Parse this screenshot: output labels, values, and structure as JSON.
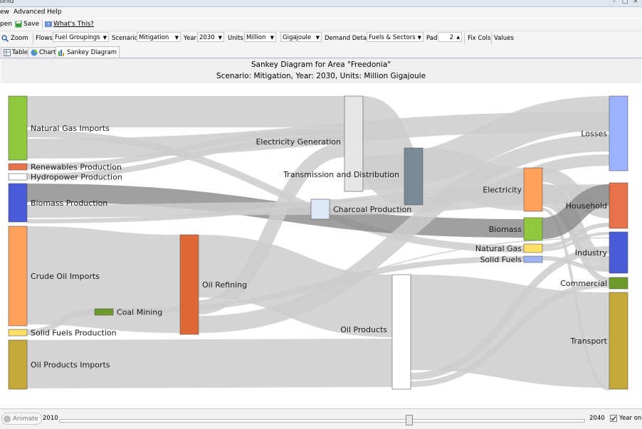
{
  "window": {
    "title_fragment": "onld"
  },
  "menu": {
    "items": [
      "ew",
      "Advanced",
      "Help"
    ]
  },
  "toolbar": {
    "open_label": "pen",
    "save_label": "Save",
    "whats_this_label": "What's This?"
  },
  "controls": {
    "zoom_label": "Zoom",
    "flows_label": "Flows:",
    "flows_value": "Fuel Groupings",
    "scenario_label": "Scenario:",
    "scenario_value": "Mitigation",
    "year_label": "Year:",
    "year_value": "2030",
    "units_label": "Units:",
    "units_value": "Million",
    "unit_value": "Gigajoule",
    "demand_label": "Demand Detail:",
    "demand_value": "Fuels & Sectors",
    "pad_label": "Pad:",
    "pad_value": "2",
    "fixcols_label": "Fix Cols",
    "values_label": "Values"
  },
  "tabs": [
    {
      "label": "Table"
    },
    {
      "label": "Chart"
    },
    {
      "label": "Sankey Diagram",
      "active": true
    }
  ],
  "diagram": {
    "title": "Sankey Diagram for Area \"Freedonia\"",
    "subtitle": "Scenario: Mitigation, Year: 2030, Units: Million Gigajoule",
    "colors": {
      "flow": "#cccccc",
      "flow_dark": "#888888"
    },
    "nodes": [
      {
        "id": "ngi",
        "label": "Natural Gas Imports",
        "color": "#92c83e"
      },
      {
        "id": "ren",
        "label": "Renewables Production",
        "color": "#e8734a"
      },
      {
        "id": "hyd",
        "label": "Hydropower Production",
        "color": "#ffffff"
      },
      {
        "id": "bio",
        "label": "Biomass Production",
        "color": "#4a5bd8"
      },
      {
        "id": "coi",
        "label": "Crude Oil Imports",
        "color": "#ff9f5a"
      },
      {
        "id": "sfp",
        "label": "Solid Fuels Production",
        "color": "#ffe066"
      },
      {
        "id": "opi",
        "label": "Oil Products Imports",
        "color": "#c4a83a"
      },
      {
        "id": "coal",
        "label": "Coal Mining",
        "color": "#6e9a2c"
      },
      {
        "id": "ref",
        "label": "Oil Refining",
        "color": "#de6836"
      },
      {
        "id": "egen",
        "label": "Electricity Generation",
        "color": "#e6e6e6"
      },
      {
        "id": "char",
        "label": "Charcoal Production",
        "color": "#dde8f8"
      },
      {
        "id": "td",
        "label": "Transmission and Distribution",
        "color": "#7a8a96"
      },
      {
        "id": "op",
        "label": "Oil Products",
        "color": "#ffffff"
      },
      {
        "id": "elec",
        "label": "Electricity",
        "color": "#ff9f5a"
      },
      {
        "id": "biom",
        "label": "Biomass",
        "color": "#92c83e"
      },
      {
        "id": "ng",
        "label": "Natural Gas",
        "color": "#ffe066"
      },
      {
        "id": "sf",
        "label": "Solid Fuels",
        "color": "#9db3f2"
      },
      {
        "id": "loss",
        "label": "Losses",
        "color": "#9db3ff"
      },
      {
        "id": "hh",
        "label": "Household",
        "color": "#e8734a"
      },
      {
        "id": "ind",
        "label": "Industry",
        "color": "#4a5bd8"
      },
      {
        "id": "com",
        "label": "Commercial",
        "color": "#6e9a2c"
      },
      {
        "id": "tra",
        "label": "Transport",
        "color": "#c4a83a"
      }
    ]
  },
  "bottom": {
    "animate_label": "Animate",
    "year_start": "2010",
    "year_end": "2040",
    "year_on_label": "Year on",
    "slider_fraction": 0.667
  }
}
